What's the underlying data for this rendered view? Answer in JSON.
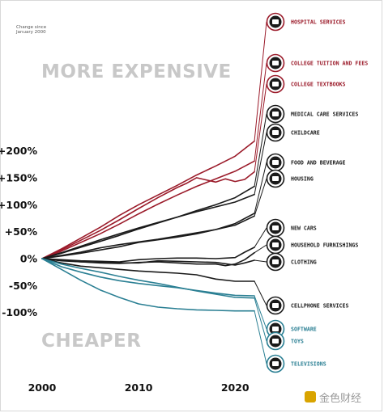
{
  "chart_data": {
    "type": "line",
    "y_axis_note": [
      "Change since",
      "January 2000"
    ],
    "x_ticks": [
      2000,
      2010,
      2020
    ],
    "y_ticks": [
      {
        "value": 200,
        "label": "+200%"
      },
      {
        "value": 150,
        "label": "+150%"
      },
      {
        "value": 100,
        "label": "+100%"
      },
      {
        "value": 50,
        "label": "+50%"
      },
      {
        "value": 0,
        "label": "0%"
      },
      {
        "value": -50,
        "label": "-50%"
      },
      {
        "value": -100,
        "label": "-100%"
      }
    ],
    "xlim": [
      2000,
      2022.5
    ],
    "ylim": [
      -107,
      220
    ],
    "region_labels": {
      "expensive": "MORE EXPENSIVE",
      "cheaper": "CHEAPER"
    },
    "colors": {
      "expensive": "#9b1b2a",
      "neutral": "#1a1a1a",
      "cheaper": "#2a7f93"
    },
    "series": [
      {
        "name": "HOSPITAL SERVICES",
        "group": "expensive",
        "icon": "hospital-icon",
        "points": [
          [
            2000,
            0
          ],
          [
            2002,
            18
          ],
          [
            2004,
            38
          ],
          [
            2006,
            58
          ],
          [
            2008,
            80
          ],
          [
            2010,
            100
          ],
          [
            2012,
            118
          ],
          [
            2014,
            136
          ],
          [
            2016,
            155
          ],
          [
            2018,
            172
          ],
          [
            2020,
            190
          ],
          [
            2022,
            218
          ]
        ]
      },
      {
        "name": "COLLEGE TUITION AND FEES",
        "group": "expensive",
        "icon": "graduation-cap-icon",
        "points": [
          [
            2000,
            0
          ],
          [
            2002,
            14
          ],
          [
            2004,
            30
          ],
          [
            2006,
            46
          ],
          [
            2008,
            64
          ],
          [
            2010,
            83
          ],
          [
            2012,
            101
          ],
          [
            2014,
            118
          ],
          [
            2016,
            134
          ],
          [
            2018,
            148
          ],
          [
            2020,
            162
          ],
          [
            2022,
            181
          ]
        ]
      },
      {
        "name": "COLLEGE TEXTBOOKS",
        "group": "expensive",
        "icon": "textbooks-icon",
        "points": [
          [
            2000,
            0
          ],
          [
            2002,
            16
          ],
          [
            2004,
            34
          ],
          [
            2006,
            52
          ],
          [
            2008,
            72
          ],
          [
            2010,
            93
          ],
          [
            2012,
            113
          ],
          [
            2014,
            132
          ],
          [
            2015,
            140
          ],
          [
            2016,
            150
          ],
          [
            2017,
            146
          ],
          [
            2018,
            142
          ],
          [
            2019,
            148
          ],
          [
            2020,
            143
          ],
          [
            2021,
            147
          ],
          [
            2022,
            161
          ]
        ]
      },
      {
        "name": "MEDICAL CARE SERVICES",
        "group": "neutral",
        "icon": "medical-kit-icon",
        "points": [
          [
            2000,
            0
          ],
          [
            2002,
            10
          ],
          [
            2004,
            21
          ],
          [
            2006,
            32
          ],
          [
            2008,
            43
          ],
          [
            2010,
            55
          ],
          [
            2012,
            66
          ],
          [
            2014,
            77
          ],
          [
            2016,
            89
          ],
          [
            2018,
            100
          ],
          [
            2020,
            113
          ],
          [
            2022,
            134
          ]
        ]
      },
      {
        "name": "CHILDCARE",
        "group": "neutral",
        "icon": "stroller-icon",
        "points": [
          [
            2000,
            0
          ],
          [
            2002,
            11
          ],
          [
            2004,
            23
          ],
          [
            2006,
            35
          ],
          [
            2008,
            46
          ],
          [
            2010,
            57
          ],
          [
            2012,
            67
          ],
          [
            2014,
            77
          ],
          [
            2016,
            87
          ],
          [
            2018,
            96
          ],
          [
            2020,
            105
          ],
          [
            2022,
            119
          ]
        ]
      },
      {
        "name": "FOOD AND BEVERAGE",
        "group": "neutral",
        "icon": "food-icon",
        "points": [
          [
            2000,
            0
          ],
          [
            2002,
            5
          ],
          [
            2004,
            10
          ],
          [
            2006,
            16
          ],
          [
            2008,
            22
          ],
          [
            2010,
            30
          ],
          [
            2012,
            35
          ],
          [
            2014,
            40
          ],
          [
            2016,
            46
          ],
          [
            2018,
            54
          ],
          [
            2020,
            65
          ],
          [
            2022,
            84
          ]
        ]
      },
      {
        "name": "HOUSING",
        "group": "neutral",
        "icon": "house-icon",
        "points": [
          [
            2000,
            0
          ],
          [
            2002,
            6
          ],
          [
            2004,
            12
          ],
          [
            2006,
            20
          ],
          [
            2008,
            26
          ],
          [
            2010,
            31
          ],
          [
            2012,
            36
          ],
          [
            2014,
            42
          ],
          [
            2016,
            48
          ],
          [
            2018,
            54
          ],
          [
            2020,
            62
          ],
          [
            2022,
            79
          ]
        ]
      },
      {
        "name": "NEW CARS",
        "group": "neutral",
        "icon": "car-icon",
        "points": [
          [
            2000,
            0
          ],
          [
            2002,
            -2
          ],
          [
            2004,
            -4
          ],
          [
            2006,
            -5
          ],
          [
            2008,
            -6
          ],
          [
            2010,
            -2
          ],
          [
            2012,
            0
          ],
          [
            2014,
            1
          ],
          [
            2016,
            1
          ],
          [
            2018,
            0
          ],
          [
            2020,
            2
          ],
          [
            2021,
            12
          ],
          [
            2022,
            21
          ]
        ]
      },
      {
        "name": "HOUSEHOLD FURNISHINGS",
        "group": "neutral",
        "icon": "sofa-icon",
        "points": [
          [
            2000,
            0
          ],
          [
            2002,
            -3
          ],
          [
            2004,
            -6
          ],
          [
            2006,
            -8
          ],
          [
            2008,
            -9
          ],
          [
            2010,
            -7
          ],
          [
            2012,
            -6
          ],
          [
            2014,
            -8
          ],
          [
            2016,
            -10
          ],
          [
            2018,
            -10
          ],
          [
            2019,
            -13
          ],
          [
            2020,
            -10
          ],
          [
            2021,
            -2
          ],
          [
            2022,
            11
          ]
        ]
      },
      {
        "name": "CLOTHING",
        "group": "neutral",
        "icon": "shirt-icon",
        "points": [
          [
            2000,
            0
          ],
          [
            2002,
            -4
          ],
          [
            2004,
            -6
          ],
          [
            2006,
            -7
          ],
          [
            2008,
            -8
          ],
          [
            2010,
            -8
          ],
          [
            2012,
            -4
          ],
          [
            2014,
            -5
          ],
          [
            2016,
            -6
          ],
          [
            2018,
            -7
          ],
          [
            2020,
            -12
          ],
          [
            2021,
            -8
          ],
          [
            2022,
            -3
          ]
        ]
      },
      {
        "name": "CELLPHONE SERVICES",
        "group": "neutral",
        "icon": "cellphone-icon",
        "points": [
          [
            2000,
            0
          ],
          [
            2002,
            -8
          ],
          [
            2004,
            -14
          ],
          [
            2006,
            -17
          ],
          [
            2008,
            -20
          ],
          [
            2010,
            -23
          ],
          [
            2012,
            -25
          ],
          [
            2014,
            -27
          ],
          [
            2016,
            -30
          ],
          [
            2018,
            -38
          ],
          [
            2020,
            -42
          ],
          [
            2022,
            -42
          ]
        ]
      },
      {
        "name": "SOFTWARE",
        "group": "cheaper",
        "icon": "software-icon",
        "points": [
          [
            2000,
            0
          ],
          [
            2002,
            -15
          ],
          [
            2004,
            -25
          ],
          [
            2006,
            -34
          ],
          [
            2008,
            -41
          ],
          [
            2010,
            -46
          ],
          [
            2012,
            -50
          ],
          [
            2014,
            -54
          ],
          [
            2016,
            -59
          ],
          [
            2018,
            -64
          ],
          [
            2020,
            -68
          ],
          [
            2022,
            -69
          ]
        ]
      },
      {
        "name": "TOYS",
        "group": "cheaper",
        "icon": "teddy-bear-icon",
        "points": [
          [
            2000,
            0
          ],
          [
            2002,
            -10
          ],
          [
            2004,
            -18
          ],
          [
            2006,
            -25
          ],
          [
            2008,
            -33
          ],
          [
            2010,
            -40
          ],
          [
            2012,
            -46
          ],
          [
            2014,
            -53
          ],
          [
            2016,
            -60
          ],
          [
            2018,
            -66
          ],
          [
            2020,
            -72
          ],
          [
            2022,
            -73
          ]
        ]
      },
      {
        "name": "TELEVISIONS",
        "group": "cheaper",
        "icon": "television-icon",
        "points": [
          [
            2000,
            0
          ],
          [
            2002,
            -20
          ],
          [
            2004,
            -40
          ],
          [
            2006,
            -58
          ],
          [
            2008,
            -72
          ],
          [
            2010,
            -84
          ],
          [
            2012,
            -90
          ],
          [
            2014,
            -93
          ],
          [
            2016,
            -95
          ],
          [
            2018,
            -96
          ],
          [
            2020,
            -97
          ],
          [
            2022,
            -97
          ]
        ]
      }
    ]
  },
  "watermark": {
    "text": "金色财经"
  }
}
